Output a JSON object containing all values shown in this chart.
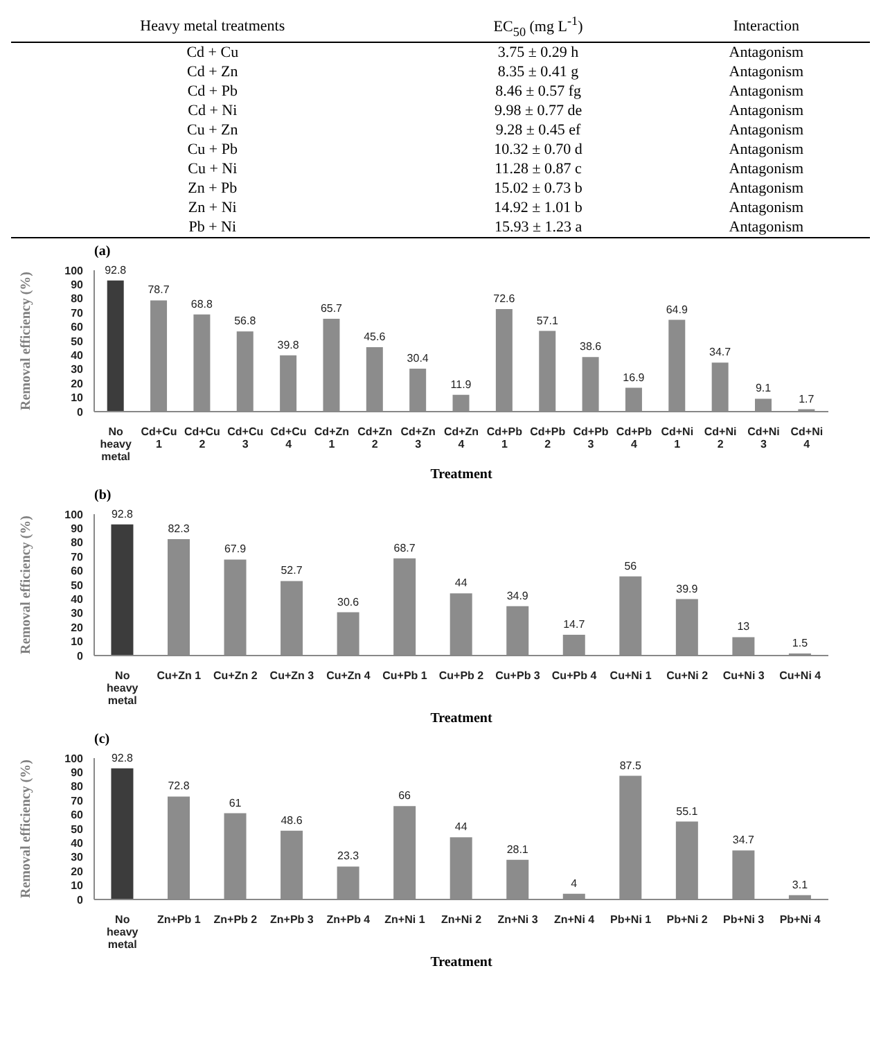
{
  "chart_data": [
    {
      "type": "other",
      "categories": [
        "Heavy metal treatments",
        "EC$_{50}$ (mg L$^{-1}$)",
        "Interaction"
      ],
      "cell_labels": [
        [
          "Cd + Cu",
          "3.75 ± 0.29 h",
          "Antagonism"
        ],
        [
          "Cd + Zn",
          "8.35 ± 0.41 g",
          "Antagonism"
        ],
        [
          "Cd + Pb",
          "8.46 ± 0.57 fg",
          "Antagonism"
        ],
        [
          "Cd + Ni",
          "9.98 ± 0.77 de",
          "Antagonism"
        ],
        [
          "Cu + Zn",
          "9.28 ± 0.45 ef",
          "Antagonism"
        ],
        [
          "Cu + Pb",
          "10.32 ± 0.70 d",
          "Antagonism"
        ],
        [
          "Cu + Ni",
          "11.28 ± 0.87 c",
          "Antagonism"
        ],
        [
          "Zn + Pb",
          "15.02 ± 0.73 b",
          "Antagonism"
        ],
        [
          "Zn + Ni",
          "14.92 ± 1.01 b",
          "Antagonism"
        ],
        [
          "Pb + Ni",
          "15.93 ± 1.23 a",
          "Antagonism"
        ]
      ]
    },
    {
      "type": "bar",
      "title": "(a)",
      "xlabel": "Treatment",
      "ylabel": "Removal  efficiency (%)",
      "categories": [
        "No heavy metal",
        "Cd+Cu 1",
        "Cd+Cu 2",
        "Cd+Cu 3",
        "Cd+Cu 4",
        "Cd+Zn 1",
        "Cd+Zn 2",
        "Cd+Zn 3",
        "Cd+Zn 4",
        "Cd+Pb 1",
        "Cd+Pb 2",
        "Cd+Pb 3",
        "Cd+Pb 4",
        "Cd+Ni 1",
        "Cd+Ni 2",
        "Cd+Ni 3",
        "Cd+Ni 4"
      ],
      "values": [
        92.8,
        78.7,
        68.8,
        56.8,
        39.8,
        65.7,
        45.6,
        30.4,
        11.9,
        72.6,
        57.1,
        38.6,
        16.9,
        64.9,
        34.7,
        9.1,
        1.7
      ],
      "colors": [
        "#3c3c3c",
        "#8c8c8c",
        "#8c8c8c",
        "#8c8c8c",
        "#8c8c8c",
        "#8c8c8c",
        "#8c8c8c",
        "#8c8c8c",
        "#8c8c8c",
        "#8c8c8c",
        "#8c8c8c",
        "#8c8c8c",
        "#8c8c8c",
        "#8c8c8c",
        "#8c8c8c",
        "#8c8c8c",
        "#8c8c8c"
      ],
      "ylim": [
        0,
        100
      ],
      "yticks": [
        0,
        10,
        20,
        30,
        40,
        50,
        60,
        70,
        80,
        90,
        100
      ],
      "data_labels": true
    },
    {
      "type": "bar",
      "title": "(b)",
      "xlabel": "Treatment",
      "ylabel": "Removal  efficiency (%)",
      "categories": [
        "No heavy metal",
        "Cu+Zn 1",
        "Cu+Zn 2",
        "Cu+Zn 3",
        "Cu+Zn 4",
        "Cu+Pb 1",
        "Cu+Pb 2",
        "Cu+Pb 3",
        "Cu+Pb 4",
        "Cu+Ni 1",
        "Cu+Ni 2",
        "Cu+Ni 3",
        "Cu+Ni 4"
      ],
      "values": [
        92.8,
        82.3,
        67.9,
        52.7,
        30.6,
        68.7,
        44,
        34.9,
        14.7,
        56,
        39.9,
        13,
        1.5
      ],
      "colors": [
        "#3c3c3c",
        "#8c8c8c",
        "#8c8c8c",
        "#8c8c8c",
        "#8c8c8c",
        "#8c8c8c",
        "#8c8c8c",
        "#8c8c8c",
        "#8c8c8c",
        "#8c8c8c",
        "#8c8c8c",
        "#8c8c8c",
        "#8c8c8c"
      ],
      "ylim": [
        0,
        100
      ],
      "yticks": [
        0,
        10,
        20,
        30,
        40,
        50,
        60,
        70,
        80,
        90,
        100
      ],
      "data_labels": true
    },
    {
      "type": "bar",
      "title": "(c)",
      "xlabel": "Treatment",
      "ylabel": "Removal  efficiency (%)",
      "categories": [
        "No heavy metal",
        "Zn+Pb 1",
        "Zn+Pb 2",
        "Zn+Pb 3",
        "Zn+Pb 4",
        "Zn+Ni 1",
        "Zn+Ni 2",
        "Zn+Ni 3",
        "Zn+Ni 4",
        "Pb+Ni 1",
        "Pb+Ni 2",
        "Pb+Ni 3",
        "Pb+Ni 4"
      ],
      "values": [
        92.8,
        72.8,
        61,
        48.6,
        23.3,
        66,
        44,
        28.1,
        4,
        87.5,
        55.1,
        34.7,
        3.1
      ],
      "colors": [
        "#3c3c3c",
        "#8c8c8c",
        "#8c8c8c",
        "#8c8c8c",
        "#8c8c8c",
        "#8c8c8c",
        "#8c8c8c",
        "#8c8c8c",
        "#8c8c8c",
        "#8c8c8c",
        "#8c8c8c",
        "#8c8c8c",
        "#8c8c8c"
      ],
      "ylim": [
        0,
        100
      ],
      "yticks": [
        0,
        10,
        20,
        30,
        40,
        50,
        60,
        70,
        80,
        90,
        100
      ],
      "data_labels": true
    }
  ]
}
